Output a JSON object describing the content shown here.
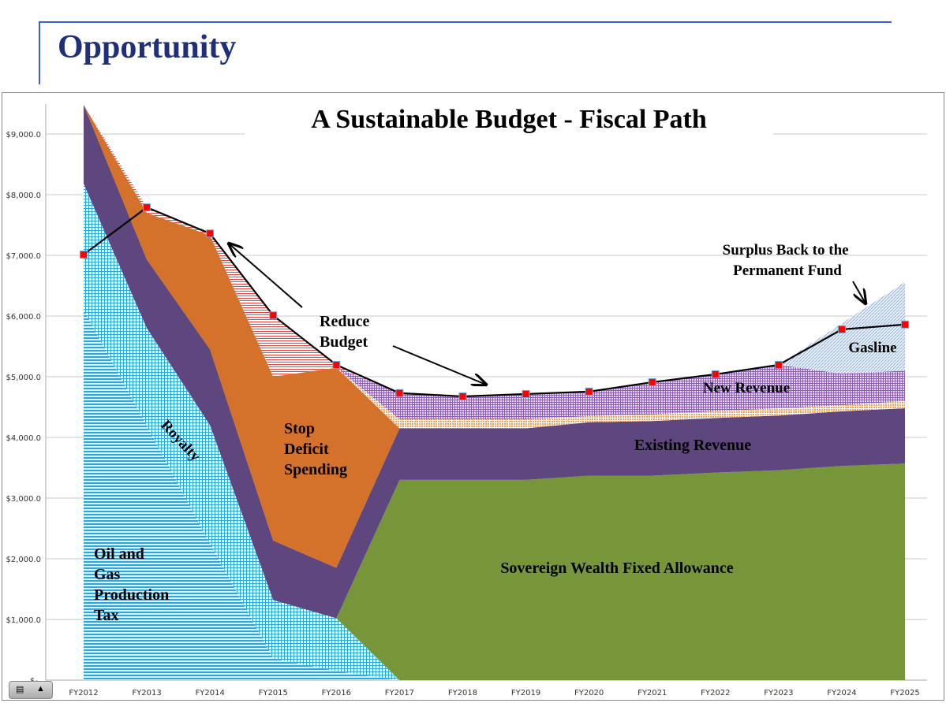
{
  "slide": {
    "title": "Opportunity"
  },
  "chart_data": {
    "type": "area",
    "stacked": true,
    "title": "A Sustainable Budget - Fiscal Path",
    "xlabel": "",
    "ylabel": "",
    "categories": [
      "FY2012",
      "FY2013",
      "FY2014",
      "FY2015",
      "FY2016",
      "FY2017",
      "FY2018",
      "FY2019",
      "FY2020",
      "FY2021",
      "FY2022",
      "FY2023",
      "FY2024",
      "FY2025"
    ],
    "yticks": [
      "$-",
      "$1,000.0",
      "$2,000.0",
      "$3,000.0",
      "$4,000.0",
      "$5,000.0",
      "$6,000.0",
      "$7,000.0",
      "$8,000.0",
      "$9,000.0"
    ],
    "ylim": [
      0,
      9500
    ],
    "grid": true,
    "legend": "none",
    "series": [
      {
        "key": "prod_tax",
        "color": "#29a8e0",
        "pattern": "horizontal-lines",
        "values": [
          6100,
          4190,
          2250,
          360,
          150,
          0,
          0,
          0,
          0,
          0,
          0,
          0,
          0,
          0
        ]
      },
      {
        "key": "royalty",
        "color": "#29a8e0",
        "pattern": "grid",
        "values": [
          2080,
          1610,
          1950,
          960,
          870,
          0,
          0,
          0,
          0,
          0,
          0,
          0,
          0,
          0
        ]
      },
      {
        "key": "swf",
        "color": "#77963a",
        "pattern": "solid",
        "values": [
          0,
          0,
          0,
          0,
          0,
          3300,
          3300,
          3300,
          3370,
          3370,
          3420,
          3460,
          3530,
          3570
        ]
      },
      {
        "key": "existing",
        "color": "#5e467f",
        "pattern": "solid",
        "values": [
          1300,
          1130,
          1250,
          980,
          830,
          850,
          850,
          850,
          880,
          900,
          900,
          900,
          900,
          910
        ]
      },
      {
        "key": "deficit",
        "color": "#d4712b",
        "pattern": "solid",
        "values": [
          0,
          770,
          1880,
          2700,
          3300,
          0,
          0,
          0,
          0,
          0,
          0,
          0,
          0,
          0
        ]
      },
      {
        "key": "other",
        "color": "#f7a35c",
        "pattern": "dots",
        "values": [
          0,
          0,
          0,
          0,
          0,
          150,
          150,
          150,
          100,
          110,
          110,
          120,
          100,
          120
        ]
      },
      {
        "key": "new_revenue",
        "color": "#8e5bc0",
        "pattern": "grid",
        "values": [
          0,
          0,
          0,
          0,
          0,
          430,
          375,
          415,
          405,
          530,
          610,
          715,
          520,
          500
        ]
      },
      {
        "key": "budget_reduction",
        "color": "#f04040",
        "pattern": "horizontal-lines",
        "values": [
          0,
          90,
          30,
          1010,
          45,
          0,
          0,
          0,
          0,
          0,
          0,
          0,
          0,
          0
        ]
      },
      {
        "key": "gasline_surplus",
        "color": "#8fb4e3",
        "pattern": "diagonal",
        "values": [
          0,
          0,
          0,
          0,
          0,
          0,
          0,
          0,
          0,
          0,
          0,
          0,
          830,
          1460
        ]
      }
    ],
    "budget_line": {
      "color": "#000000",
      "marker_color": "#ff0000",
      "values": [
        7013,
        7790,
        7360,
        6010,
        5195,
        4730,
        4675,
        4715,
        4755,
        4910,
        5040,
        5195,
        5780,
        5860
      ]
    },
    "annotations": {
      "oil_gas": [
        "Oil and",
        "Gas",
        "Production",
        "Tax"
      ],
      "royalty": "Royalty",
      "stop_deficit": [
        "Stop",
        "Deficit",
        "Spending"
      ],
      "reduce_budget": [
        "Reduce",
        "Budget"
      ],
      "swf": "Sovereign Wealth Fixed Allowance",
      "existing": "Existing Revenue",
      "new_revenue": "New Revenue",
      "gasline": "Gasline",
      "surplus": [
        "Surplus Back to the",
        "Permanent Fund"
      ]
    }
  }
}
